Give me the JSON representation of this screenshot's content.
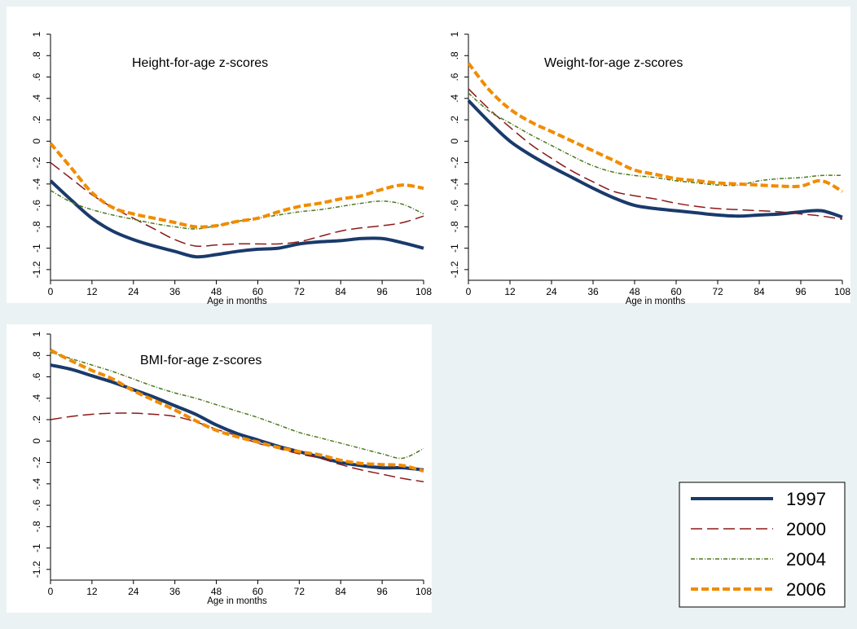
{
  "figure": {
    "background": "#eaf2f3",
    "panel_background": "#ffffff"
  },
  "legend": {
    "placement": "bottom-right",
    "entries": [
      {
        "label": "1997",
        "color": "#1a3a6b",
        "style": "solid"
      },
      {
        "label": "2000",
        "color": "#8b1a1a",
        "style": "longdash"
      },
      {
        "label": "2004",
        "color": "#4d7a1f",
        "style": "dashdot"
      },
      {
        "label": "2006",
        "color": "#f08c00",
        "style": "dash"
      }
    ]
  },
  "chart_data": [
    {
      "type": "line",
      "title": "Height-for-age z-scores",
      "xlabel": "Age in months",
      "ylabel": "",
      "xlim": [
        0,
        108
      ],
      "ylim": [
        -1.3,
        1.0
      ],
      "xticks": [
        "0",
        "12",
        "24",
        "36",
        "48",
        "60",
        "72",
        "84",
        "96",
        "108"
      ],
      "yticks": [
        "1",
        ".8",
        ".6",
        ".4",
        ".2",
        "0",
        "-.2",
        "-.4",
        "-.6",
        "-.8",
        "-1",
        "-1.2"
      ],
      "grid": false,
      "x": [
        0,
        6,
        12,
        18,
        24,
        30,
        36,
        42,
        48,
        54,
        60,
        66,
        72,
        78,
        84,
        90,
        96,
        102,
        108
      ],
      "series": [
        {
          "name": "1997",
          "values": [
            -0.37,
            -0.55,
            -0.72,
            -0.84,
            -0.92,
            -0.98,
            -1.03,
            -1.08,
            -1.06,
            -1.03,
            -1.01,
            -1.0,
            -0.96,
            -0.94,
            -0.93,
            -0.91,
            -0.91,
            -0.95,
            -1.0
          ]
        },
        {
          "name": "2000",
          "values": [
            -0.2,
            -0.35,
            -0.5,
            -0.62,
            -0.72,
            -0.82,
            -0.92,
            -0.98,
            -0.97,
            -0.96,
            -0.96,
            -0.96,
            -0.94,
            -0.89,
            -0.84,
            -0.81,
            -0.79,
            -0.76,
            -0.7
          ]
        },
        {
          "name": "2004",
          "values": [
            -0.46,
            -0.57,
            -0.64,
            -0.69,
            -0.73,
            -0.77,
            -0.8,
            -0.82,
            -0.79,
            -0.75,
            -0.72,
            -0.69,
            -0.66,
            -0.64,
            -0.61,
            -0.58,
            -0.56,
            -0.59,
            -0.68
          ]
        },
        {
          "name": "2006",
          "values": [
            -0.02,
            -0.25,
            -0.48,
            -0.62,
            -0.68,
            -0.72,
            -0.76,
            -0.8,
            -0.79,
            -0.75,
            -0.72,
            -0.66,
            -0.61,
            -0.58,
            -0.54,
            -0.51,
            -0.45,
            -0.41,
            -0.44
          ]
        }
      ]
    },
    {
      "type": "line",
      "title": "Weight-for-age z-scores",
      "xlabel": "Age in months",
      "ylabel": "",
      "xlim": [
        0,
        108
      ],
      "ylim": [
        -1.3,
        1.0
      ],
      "xticks": [
        "0",
        "12",
        "24",
        "36",
        "48",
        "60",
        "72",
        "84",
        "96",
        "108"
      ],
      "yticks": [
        "1",
        ".8",
        ".6",
        ".4",
        ".2",
        "0",
        "-.2",
        "-.4",
        "-.6",
        "-.8",
        "-1",
        "-1.2"
      ],
      "grid": false,
      "x": [
        0,
        6,
        12,
        18,
        24,
        30,
        36,
        42,
        48,
        54,
        60,
        66,
        72,
        78,
        84,
        90,
        96,
        102,
        108
      ],
      "series": [
        {
          "name": "1997",
          "values": [
            0.38,
            0.18,
            0.0,
            -0.13,
            -0.24,
            -0.34,
            -0.44,
            -0.53,
            -0.6,
            -0.63,
            -0.65,
            -0.67,
            -0.69,
            -0.7,
            -0.69,
            -0.68,
            -0.66,
            -0.65,
            -0.71
          ]
        },
        {
          "name": "2000",
          "values": [
            0.49,
            0.3,
            0.13,
            -0.03,
            -0.16,
            -0.28,
            -0.38,
            -0.47,
            -0.51,
            -0.54,
            -0.58,
            -0.61,
            -0.63,
            -0.64,
            -0.65,
            -0.66,
            -0.68,
            -0.7,
            -0.73
          ]
        },
        {
          "name": "2004",
          "values": [
            0.45,
            0.28,
            0.17,
            0.06,
            -0.04,
            -0.14,
            -0.23,
            -0.29,
            -0.32,
            -0.34,
            -0.37,
            -0.39,
            -0.41,
            -0.41,
            -0.37,
            -0.35,
            -0.34,
            -0.32,
            -0.32
          ]
        },
        {
          "name": "2006",
          "values": [
            0.73,
            0.48,
            0.3,
            0.18,
            0.09,
            0.0,
            -0.09,
            -0.18,
            -0.27,
            -0.31,
            -0.35,
            -0.37,
            -0.39,
            -0.4,
            -0.41,
            -0.42,
            -0.42,
            -0.37,
            -0.47
          ]
        }
      ]
    },
    {
      "type": "line",
      "title": "BMI-for-age z-scores",
      "xlabel": "Age in months",
      "ylabel": "",
      "xlim": [
        0,
        108
      ],
      "ylim": [
        -1.3,
        1.0
      ],
      "xticks": [
        "0",
        "12",
        "24",
        "36",
        "48",
        "60",
        "72",
        "84",
        "96",
        "108"
      ],
      "yticks": [
        "1",
        ".8",
        ".6",
        ".4",
        ".2",
        "0",
        "-.2",
        "-.4",
        "-.6",
        "-.8",
        "-1",
        "-1.2"
      ],
      "grid": false,
      "x": [
        0,
        6,
        12,
        18,
        24,
        30,
        36,
        42,
        48,
        54,
        60,
        66,
        72,
        78,
        84,
        90,
        96,
        102,
        108
      ],
      "series": [
        {
          "name": "1997",
          "values": [
            0.71,
            0.67,
            0.61,
            0.55,
            0.48,
            0.41,
            0.33,
            0.25,
            0.15,
            0.07,
            0.01,
            -0.05,
            -0.1,
            -0.15,
            -0.2,
            -0.23,
            -0.25,
            -0.25,
            -0.27
          ]
        },
        {
          "name": "2000",
          "values": [
            0.2,
            0.23,
            0.25,
            0.26,
            0.26,
            0.25,
            0.23,
            0.18,
            0.11,
            0.05,
            -0.02,
            -0.07,
            -0.12,
            -0.16,
            -0.22,
            -0.27,
            -0.31,
            -0.35,
            -0.38
          ]
        },
        {
          "name": "2004",
          "values": [
            0.83,
            0.77,
            0.71,
            0.65,
            0.58,
            0.51,
            0.45,
            0.4,
            0.34,
            0.28,
            0.22,
            0.15,
            0.08,
            0.03,
            -0.02,
            -0.07,
            -0.12,
            -0.16,
            -0.07
          ]
        },
        {
          "name": "2006",
          "values": [
            0.85,
            0.75,
            0.66,
            0.58,
            0.47,
            0.38,
            0.29,
            0.19,
            0.1,
            0.04,
            -0.01,
            -0.06,
            -0.1,
            -0.13,
            -0.18,
            -0.21,
            -0.22,
            -0.23,
            -0.28
          ]
        }
      ]
    }
  ]
}
